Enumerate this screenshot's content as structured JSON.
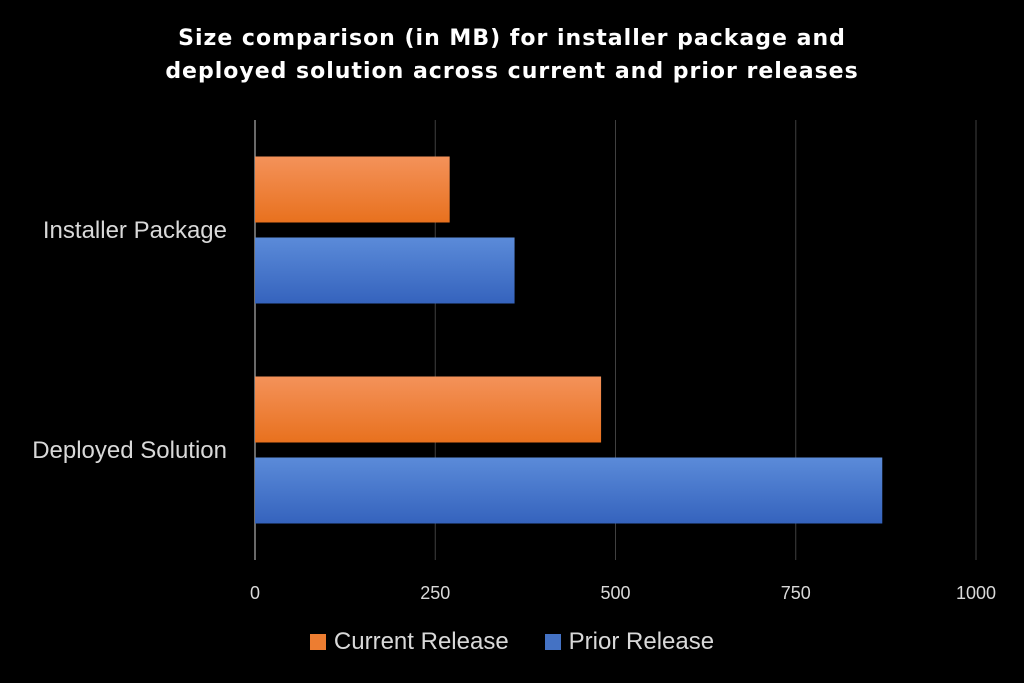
{
  "chart_data": {
    "type": "bar",
    "orientation": "horizontal",
    "title_lines": [
      "Size comparison (in MB) for installer package and",
      "deployed solution across current and prior releases"
    ],
    "categories": [
      "Installer Package",
      "Deployed Solution"
    ],
    "series": [
      {
        "name": "Current Release",
        "values": [
          270,
          480
        ],
        "color": "#ed7d31"
      },
      {
        "name": "Prior Release",
        "values": [
          360,
          870
        ],
        "color": "#4472c4"
      }
    ],
    "xlim": [
      0,
      1000
    ],
    "x_ticks": [
      "0",
      "250",
      "500",
      "750",
      "1000"
    ],
    "grid": true,
    "legend_position": "bottom"
  }
}
